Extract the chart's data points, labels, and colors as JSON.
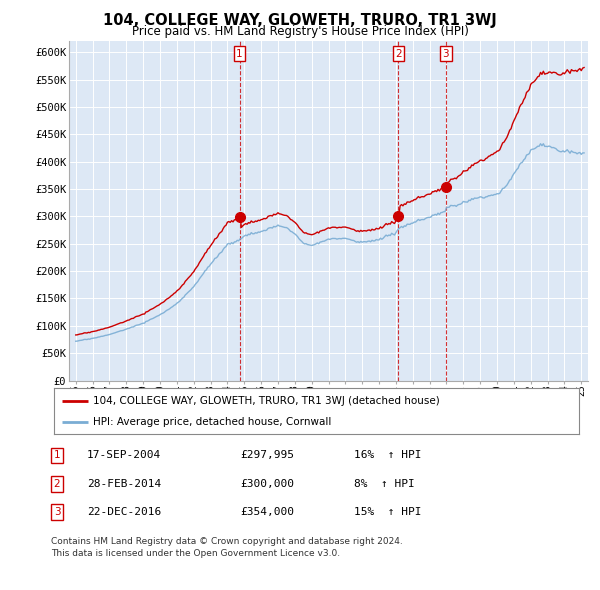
{
  "title": "104, COLLEGE WAY, GLOWETH, TRURO, TR1 3WJ",
  "subtitle": "Price paid vs. HM Land Registry's House Price Index (HPI)",
  "ylabel_ticks": [
    "£0",
    "£50K",
    "£100K",
    "£150K",
    "£200K",
    "£250K",
    "£300K",
    "£350K",
    "£400K",
    "£450K",
    "£500K",
    "£550K",
    "£600K"
  ],
  "ytick_values": [
    0,
    50000,
    100000,
    150000,
    200000,
    250000,
    300000,
    350000,
    400000,
    450000,
    500000,
    550000,
    600000
  ],
  "ylim": [
    0,
    620000
  ],
  "sale_color": "#cc0000",
  "hpi_color": "#7aadd4",
  "sale_label": "104, COLLEGE WAY, GLOWETH, TRURO, TR1 3WJ (detached house)",
  "hpi_label": "HPI: Average price, detached house, Cornwall",
  "transactions": [
    {
      "num": 1,
      "date": "17-SEP-2004",
      "price": 297995,
      "pct": "16%",
      "dir": "↑"
    },
    {
      "num": 2,
      "date": "28-FEB-2014",
      "price": 300000,
      "pct": "8%",
      "dir": "↑"
    },
    {
      "num": 3,
      "date": "22-DEC-2016",
      "price": 354000,
      "pct": "15%",
      "dir": "↑"
    }
  ],
  "footer1": "Contains HM Land Registry data © Crown copyright and database right 2024.",
  "footer2": "This data is licensed under the Open Government Licence v3.0.",
  "background_color": "#ffffff",
  "plot_bg_color": "#dde8f5",
  "grid_color": "#ffffff",
  "vline_x": [
    2004.72,
    2014.15,
    2016.97
  ]
}
